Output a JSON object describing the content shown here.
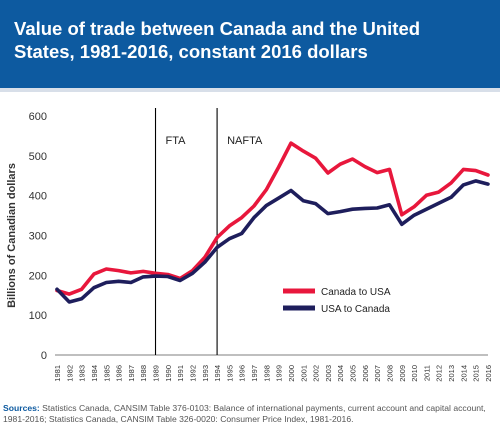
{
  "header": {
    "title": "Value of trade between Canada and the United States, 1981-2016, constant 2016 dollars"
  },
  "sources": {
    "label": "Sources:",
    "text": "Statistics Canada, CANSIM Table 376-0103: Balance of international payments, current account and capital account, 1981-2016; Statistics Canada, CANSIM Table 326-0020: Consumer Price Index, 1981-2016."
  },
  "chart_data": {
    "type": "line",
    "title": "Value of trade between Canada and the United States, 1981-2016, constant 2016 dollars",
    "ylabel": "Billions of Canadian dollars",
    "xlabel": "",
    "ylim": [
      0,
      600
    ],
    "yticks": [
      0,
      100,
      200,
      300,
      400,
      500,
      600
    ],
    "grid": false,
    "legend_position": "center-right",
    "x": [
      "1981",
      "1982",
      "1983",
      "1984",
      "1985",
      "1986",
      "1987",
      "1988",
      "1989",
      "1990",
      "1991",
      "1992",
      "1993",
      "1994",
      "1995",
      "1996",
      "1997",
      "1998",
      "1999",
      "2000",
      "2001",
      "2002",
      "2003",
      "2004",
      "2005",
      "2006",
      "2007",
      "2008",
      "2009",
      "2010",
      "2011",
      "2012",
      "2013",
      "2014",
      "2015",
      "2016"
    ],
    "series": [
      {
        "name": "Canada to USA",
        "color": "#e8173c",
        "values": [
          162,
          153,
          165,
          203,
          216,
          212,
          206,
          210,
          205,
          202,
          192,
          212,
          245,
          295,
          324,
          345,
          374,
          415,
          472,
          532,
          512,
          494,
          457,
          479,
          492,
          473,
          458,
          466,
          352,
          372,
          401,
          409,
          432,
          466,
          463,
          452
        ]
      },
      {
        "name": "USA to Canada",
        "color": "#1e1e5c",
        "values": [
          165,
          133,
          141,
          169,
          182,
          185,
          182,
          196,
          198,
          197,
          187,
          205,
          233,
          270,
          292,
          305,
          345,
          375,
          394,
          413,
          387,
          380,
          355,
          360,
          366,
          368,
          369,
          377,
          328,
          351,
          366,
          381,
          396,
          427,
          437,
          429
        ]
      }
    ],
    "annotations": [
      {
        "label": "FTA",
        "x": "1989"
      },
      {
        "label": "NAFTA",
        "x": "1994"
      }
    ]
  }
}
